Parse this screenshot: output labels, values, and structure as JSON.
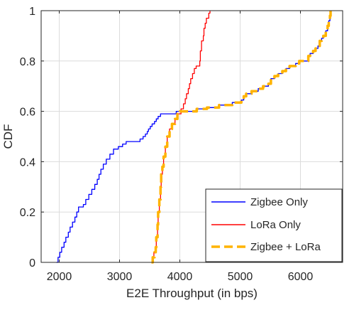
{
  "chart_data": {
    "type": "line",
    "xlabel": "E2E Throughput (in bps)",
    "ylabel": "CDF",
    "xlim": [
      1700,
      6700
    ],
    "ylim": [
      0,
      1
    ],
    "xticks": [
      2000,
      3000,
      4000,
      5000,
      6000
    ],
    "yticks": [
      0,
      0.2,
      0.4,
      0.6,
      0.8,
      1
    ],
    "xtick_labels": [
      "2000",
      "3000",
      "4000",
      "5000",
      "6000"
    ],
    "ytick_labels": [
      "0",
      "0.2",
      "0.4",
      "0.6",
      "0.8",
      "1"
    ],
    "grid": true,
    "legend_position": "bottom-right",
    "series": [
      {
        "name": "Zigbee Only",
        "color": "#0000ff",
        "style": "step",
        "points": [
          [
            1950,
            0
          ],
          [
            1980,
            0.02
          ],
          [
            2010,
            0.04
          ],
          [
            2040,
            0.06
          ],
          [
            2080,
            0.08
          ],
          [
            2110,
            0.1
          ],
          [
            2150,
            0.12
          ],
          [
            2180,
            0.14
          ],
          [
            2220,
            0.16
          ],
          [
            2260,
            0.18
          ],
          [
            2290,
            0.2
          ],
          [
            2320,
            0.22
          ],
          [
            2400,
            0.23
          ],
          [
            2440,
            0.25
          ],
          [
            2490,
            0.27
          ],
          [
            2540,
            0.29
          ],
          [
            2590,
            0.31
          ],
          [
            2630,
            0.33
          ],
          [
            2660,
            0.35
          ],
          [
            2690,
            0.37
          ],
          [
            2730,
            0.39
          ],
          [
            2780,
            0.41
          ],
          [
            2840,
            0.43
          ],
          [
            2900,
            0.45
          ],
          [
            2980,
            0.46
          ],
          [
            3050,
            0.47
          ],
          [
            3110,
            0.48
          ],
          [
            3290,
            0.48
          ],
          [
            3340,
            0.49
          ],
          [
            3390,
            0.5
          ],
          [
            3430,
            0.51
          ],
          [
            3460,
            0.52
          ],
          [
            3480,
            0.53
          ],
          [
            3510,
            0.54
          ],
          [
            3540,
            0.55
          ],
          [
            3580,
            0.56
          ],
          [
            3610,
            0.57
          ],
          [
            3640,
            0.58
          ],
          [
            3680,
            0.59
          ],
          [
            3920,
            0.59
          ],
          [
            3940,
            0.6
          ],
          [
            4000,
            0.6
          ],
          [
            4280,
            0.61
          ],
          [
            4450,
            0.615
          ],
          [
            4650,
            0.625
          ],
          [
            4870,
            0.635
          ],
          [
            5020,
            0.645
          ],
          [
            5060,
            0.66
          ],
          [
            5100,
            0.67
          ],
          [
            5190,
            0.68
          ],
          [
            5300,
            0.69
          ],
          [
            5380,
            0.7
          ],
          [
            5470,
            0.71
          ],
          [
            5510,
            0.73
          ],
          [
            5570,
            0.74
          ],
          [
            5630,
            0.75
          ],
          [
            5700,
            0.76
          ],
          [
            5760,
            0.77
          ],
          [
            5820,
            0.78
          ],
          [
            5920,
            0.79
          ],
          [
            5980,
            0.8
          ],
          [
            6100,
            0.8
          ],
          [
            6130,
            0.82
          ],
          [
            6160,
            0.83
          ],
          [
            6210,
            0.84
          ],
          [
            6250,
            0.85
          ],
          [
            6290,
            0.86
          ],
          [
            6320,
            0.88
          ],
          [
            6350,
            0.89
          ],
          [
            6380,
            0.9
          ],
          [
            6420,
            0.92
          ],
          [
            6450,
            0.94
          ],
          [
            6470,
            0.96
          ],
          [
            6490,
            0.98
          ],
          [
            6500,
            1
          ]
        ]
      },
      {
        "name": "LoRa Only",
        "color": "#ff0000",
        "style": "step",
        "points": [
          [
            3530,
            0
          ],
          [
            3540,
            0.02
          ],
          [
            3570,
            0.04
          ],
          [
            3600,
            0.06
          ],
          [
            3610,
            0.1
          ],
          [
            3630,
            0.15
          ],
          [
            3640,
            0.2
          ],
          [
            3660,
            0.25
          ],
          [
            3680,
            0.3
          ],
          [
            3690,
            0.35
          ],
          [
            3710,
            0.38
          ],
          [
            3730,
            0.42
          ],
          [
            3760,
            0.46
          ],
          [
            3790,
            0.5
          ],
          [
            3830,
            0.53
          ],
          [
            3870,
            0.55
          ],
          [
            3920,
            0.57
          ],
          [
            3960,
            0.59
          ],
          [
            4020,
            0.61
          ],
          [
            4060,
            0.63
          ],
          [
            4090,
            0.65
          ],
          [
            4110,
            0.67
          ],
          [
            4140,
            0.69
          ],
          [
            4160,
            0.71
          ],
          [
            4180,
            0.73
          ],
          [
            4210,
            0.75
          ],
          [
            4240,
            0.77
          ],
          [
            4270,
            0.78
          ],
          [
            4330,
            0.8
          ],
          [
            4340,
            0.84
          ],
          [
            4360,
            0.88
          ],
          [
            4390,
            0.9
          ],
          [
            4400,
            0.93
          ],
          [
            4420,
            0.95
          ],
          [
            4440,
            0.97
          ],
          [
            4480,
            0.99
          ],
          [
            4500,
            1
          ]
        ]
      },
      {
        "name": "Zigbee + LoRa",
        "color": "#ffb300",
        "style": "dashed",
        "points": [
          [
            3530,
            0
          ],
          [
            3550,
            0.02
          ],
          [
            3580,
            0.04
          ],
          [
            3600,
            0.06
          ],
          [
            3610,
            0.1
          ],
          [
            3630,
            0.15
          ],
          [
            3640,
            0.2
          ],
          [
            3660,
            0.25
          ],
          [
            3680,
            0.3
          ],
          [
            3690,
            0.35
          ],
          [
            3710,
            0.38
          ],
          [
            3730,
            0.42
          ],
          [
            3760,
            0.46
          ],
          [
            3790,
            0.5
          ],
          [
            3830,
            0.53
          ],
          [
            3870,
            0.55
          ],
          [
            3920,
            0.57
          ],
          [
            3960,
            0.59
          ],
          [
            4000,
            0.6
          ],
          [
            4280,
            0.61
          ],
          [
            4450,
            0.615
          ],
          [
            4650,
            0.625
          ],
          [
            4870,
            0.635
          ],
          [
            5020,
            0.645
          ],
          [
            5060,
            0.66
          ],
          [
            5100,
            0.67
          ],
          [
            5190,
            0.68
          ],
          [
            5300,
            0.69
          ],
          [
            5380,
            0.7
          ],
          [
            5470,
            0.71
          ],
          [
            5510,
            0.73
          ],
          [
            5570,
            0.74
          ],
          [
            5630,
            0.75
          ],
          [
            5700,
            0.76
          ],
          [
            5760,
            0.77
          ],
          [
            5820,
            0.78
          ],
          [
            5920,
            0.79
          ],
          [
            5980,
            0.8
          ],
          [
            6100,
            0.8
          ],
          [
            6130,
            0.82
          ],
          [
            6160,
            0.83
          ],
          [
            6210,
            0.84
          ],
          [
            6250,
            0.85
          ],
          [
            6290,
            0.86
          ],
          [
            6320,
            0.88
          ],
          [
            6350,
            0.89
          ],
          [
            6380,
            0.9
          ],
          [
            6420,
            0.92
          ],
          [
            6450,
            0.94
          ],
          [
            6470,
            0.96
          ],
          [
            6490,
            0.98
          ],
          [
            6500,
            1
          ]
        ]
      }
    ]
  }
}
